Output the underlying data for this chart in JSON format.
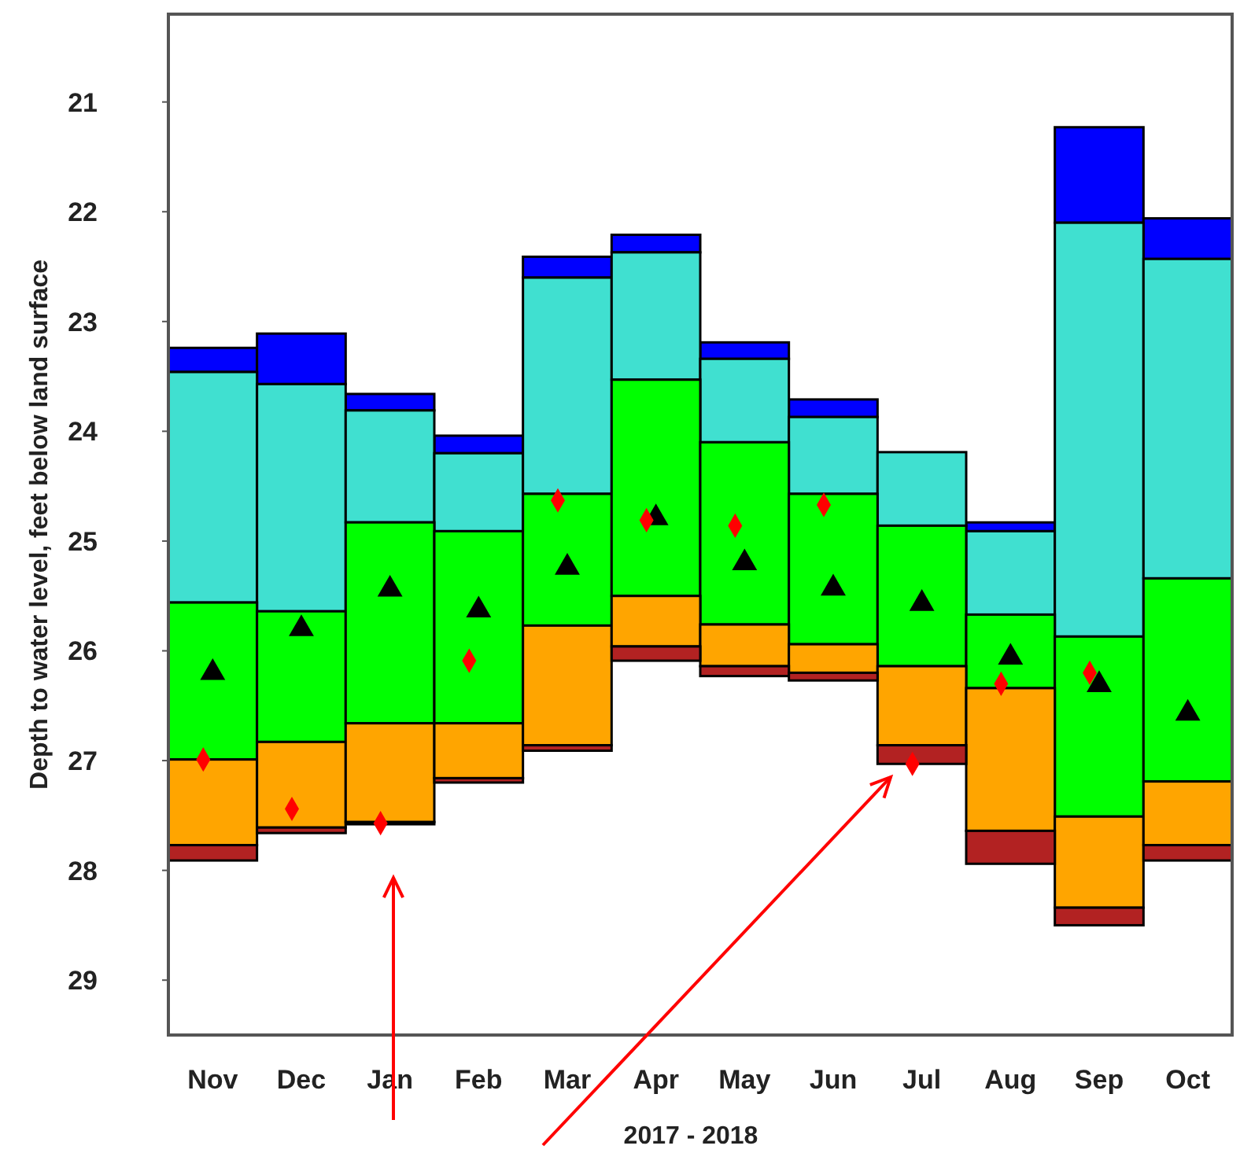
{
  "chart_data": {
    "type": "bar",
    "xlabel": "2017 - 2018",
    "ylabel": "Depth to water level, feet below land surface",
    "categories": [
      "Nov",
      "Dec",
      "Jan",
      "Feb",
      "Mar",
      "Apr",
      "May",
      "Jun",
      "Jul",
      "Aug",
      "Sep",
      "Oct"
    ],
    "series": [
      {
        "color": "#0000ff",
        "base": [
          23.24,
          23.11,
          23.66,
          24.04,
          22.41,
          22.21,
          23.19,
          23.71,
          null,
          24.83,
          21.23,
          22.06
        ],
        "values": [
          0.22,
          0.46,
          0.15,
          0.16,
          0.19,
          0.16,
          0.15,
          0.16,
          null,
          0.08,
          0.87,
          0.37
        ]
      },
      {
        "color": "#40e0d0",
        "base": [
          23.46,
          23.57,
          23.81,
          24.2,
          22.6,
          22.37,
          23.34,
          23.87,
          24.19,
          24.91,
          22.1,
          22.43
        ],
        "values": [
          2.1,
          2.07,
          1.02,
          0.71,
          1.97,
          1.16,
          0.76,
          0.7,
          0.67,
          0.76,
          3.77,
          2.91
        ]
      },
      {
        "color": "#00ff00",
        "base": [
          25.56,
          25.64,
          24.83,
          24.91,
          24.57,
          23.53,
          24.1,
          24.57,
          24.86,
          25.67,
          25.87,
          25.34
        ],
        "values": [
          1.43,
          1.19,
          1.83,
          1.75,
          1.2,
          1.97,
          1.66,
          1.37,
          1.28,
          0.67,
          1.64,
          1.85
        ]
      },
      {
        "color": "#ffa500",
        "base": [
          26.99,
          26.83,
          26.66,
          26.66,
          25.77,
          25.5,
          25.76,
          25.94,
          26.14,
          26.34,
          27.51,
          27.19
        ],
        "values": [
          0.78,
          0.78,
          0.9,
          0.5,
          1.09,
          0.46,
          0.38,
          0.26,
          0.72,
          1.3,
          0.83,
          0.58
        ]
      },
      {
        "color": "#b22222",
        "base": [
          27.77,
          27.61,
          27.56,
          27.16,
          26.86,
          25.96,
          26.14,
          26.2,
          26.86,
          27.64,
          28.34,
          27.77
        ],
        "values": [
          0.14,
          0.05,
          0.02,
          0.04,
          0.05,
          0.13,
          0.09,
          0.07,
          0.17,
          0.3,
          0.16,
          0.14
        ]
      },
      {
        "type": "scatter",
        "marker": "triangle",
        "color": "#000000",
        "x": [
          "Nov",
          "Dec",
          "Jan",
          "Feb",
          "Mar",
          "Apr",
          "May",
          "Jun",
          "Jul",
          "Aug",
          "Sep",
          "Oct"
        ],
        "values": [
          26.2,
          25.8,
          25.44,
          25.63,
          25.24,
          24.79,
          25.2,
          25.43,
          25.57,
          26.06,
          26.31,
          26.57
        ]
      },
      {
        "type": "scatter",
        "marker": "diamond",
        "color": "#ff0000",
        "x": [
          "Nov",
          "Dec",
          "Jan",
          "Feb",
          "Mar",
          "Apr",
          "May",
          "Jun",
          "Jul",
          "Aug",
          "Sep"
        ],
        "values": [
          26.99,
          27.44,
          27.57,
          26.09,
          24.63,
          24.81,
          24.86,
          24.67,
          27.03,
          26.3,
          26.2
        ]
      }
    ],
    "ylim": [
      29.5,
      20.2
    ],
    "yticks": [
      21,
      22,
      23,
      24,
      25,
      26,
      27,
      28,
      29
    ],
    "grid": false
  }
}
